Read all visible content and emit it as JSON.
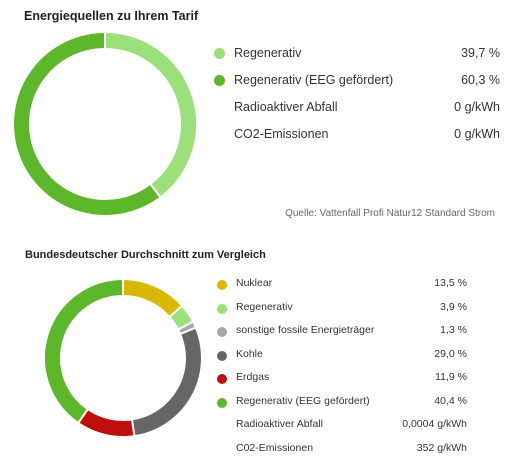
{
  "section1": {
    "title": "Energiequellen zu Ihrem Tarif",
    "source": "Quelle: Vattenfall Profi Natur12 Standard Strom"
  },
  "section2": {
    "title": "Bundesdeutscher Durchschnitt zum Vergleich"
  },
  "chart_data": [
    {
      "type": "pie",
      "title": "Energiequellen zu Ihrem Tarif",
      "donut": true,
      "slices": [
        {
          "name": "Regenerativ",
          "value": 39.7,
          "value_label": "39,7 %",
          "color": "#9be07a"
        },
        {
          "name": "Regenerativ (EEG gefördert)",
          "value": 60.3,
          "value_label": "60,3 %",
          "color": "#5cb82a"
        }
      ],
      "extra_rows": [
        {
          "name": "Radioaktiver Abfall",
          "value_label": "0 g/kWh"
        },
        {
          "name": "CO2-Emissionen",
          "value_label": "0 g/kWh"
        }
      ],
      "start_angle_deg": 0,
      "direction": "clockwise"
    },
    {
      "type": "pie",
      "title": "Bundesdeutscher Durchschnitt zum Vergleich",
      "donut": true,
      "slices": [
        {
          "name": "Nuklear",
          "value": 13.5,
          "value_label": "13,5 %",
          "color": "#d9b800"
        },
        {
          "name": "Regenerativ",
          "value": 3.9,
          "value_label": "3,9 %",
          "color": "#9be07a"
        },
        {
          "name": "sonstige fossile Energieträger",
          "value": 1.3,
          "value_label": "1,3 %",
          "color": "#a8a8a8"
        },
        {
          "name": "Kohle",
          "value": 29.0,
          "value_label": "29,0 %",
          "color": "#666666"
        },
        {
          "name": "Erdgas",
          "value": 11.9,
          "value_label": "11,9 %",
          "color": "#c00d0d"
        },
        {
          "name": "Regenerativ (EEG gefördert)",
          "value": 40.4,
          "value_label": "40,4 %",
          "color": "#5cb82a"
        }
      ],
      "extra_rows": [
        {
          "name": "Radioaktiver Abfall",
          "value_label": "0,0004 g/kWh"
        },
        {
          "name": "C02-Emissionen",
          "value_label": "352 g/kWh"
        }
      ],
      "start_angle_deg": 0,
      "direction": "clockwise"
    }
  ]
}
